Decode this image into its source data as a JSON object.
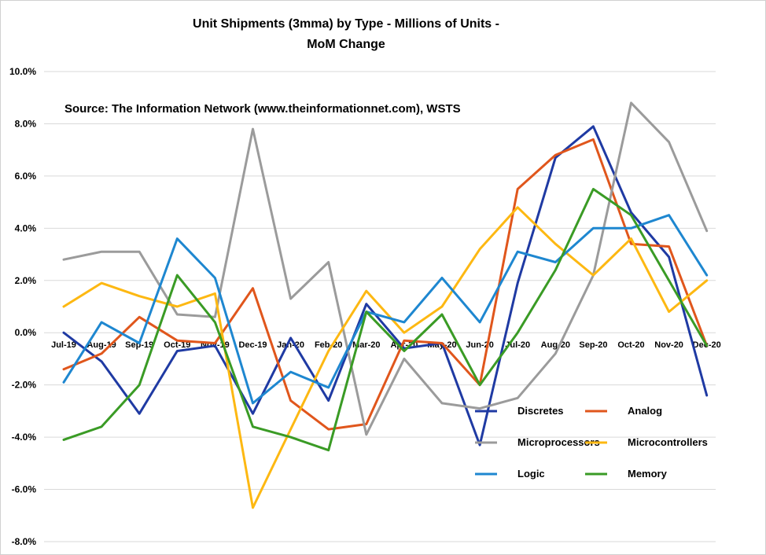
{
  "chart_data": {
    "type": "line",
    "title": "Unit Shipments (3mma) by Type - Millions of Units -",
    "subtitle": "MoM Change",
    "annotation": "Source: The Information Network (www.theinformationnet.com), WSTS",
    "categories": [
      "Jul-19",
      "Aug-19",
      "Sep-19",
      "Oct-19",
      "Nov-19",
      "Dec-19",
      "Jan-20",
      "Feb-20",
      "Mar-20",
      "Apr-20",
      "May-20",
      "Jun-20",
      "Jul-20",
      "Aug-20",
      "Sep-20",
      "Oct-20",
      "Nov-20",
      "Dec-20"
    ],
    "ylim": [
      -8,
      10
    ],
    "yticks": [
      -8,
      -6,
      -4,
      -2,
      0,
      2,
      4,
      6,
      8,
      10
    ],
    "ytick_labels": [
      "-8.0%",
      "-6.0%",
      "-4.0%",
      "-2.0%",
      "0.0%",
      "2.0%",
      "4.0%",
      "6.0%",
      "8.0%",
      "10.0%"
    ],
    "grid": "horizontal",
    "legend_position": "bottom-right",
    "series": [
      {
        "name": "Discretes",
        "color": "#1f3aa3",
        "values": [
          0.0,
          -1.1,
          -3.1,
          -0.7,
          -0.5,
          -3.1,
          -0.2,
          -2.6,
          1.1,
          -0.6,
          -0.4,
          -4.3,
          1.9,
          6.7,
          7.9,
          4.6,
          2.9,
          -2.4
        ]
      },
      {
        "name": "Analog",
        "color": "#e0561c",
        "values": [
          -1.4,
          -0.8,
          0.6,
          -0.3,
          -0.4,
          1.7,
          -2.6,
          -3.7,
          -3.5,
          -0.3,
          -0.4,
          -2.0,
          5.5,
          6.8,
          7.4,
          3.4,
          3.3,
          -0.5
        ]
      },
      {
        "name": "Microprocessors",
        "color": "#9b9b9b",
        "values": [
          2.8,
          3.1,
          3.1,
          0.7,
          0.6,
          7.8,
          1.3,
          2.7,
          -3.9,
          -1.0,
          -2.7,
          -2.9,
          -2.5,
          -0.8,
          2.2,
          8.8,
          7.3,
          3.9
        ]
      },
      {
        "name": "Microcontrollers",
        "color": "#fdb812",
        "values": [
          1.0,
          1.9,
          1.4,
          1.0,
          1.5,
          -6.7,
          -3.7,
          -0.7,
          1.6,
          0.0,
          1.0,
          3.2,
          4.8,
          3.4,
          2.2,
          3.6,
          0.8,
          2.0
        ]
      },
      {
        "name": "Logic",
        "color": "#1e87d0",
        "values": [
          -1.9,
          0.4,
          -0.4,
          3.6,
          2.1,
          -2.7,
          -1.5,
          -2.1,
          0.8,
          0.4,
          2.1,
          0.4,
          3.1,
          2.7,
          4.0,
          4.0,
          4.5,
          2.2
        ]
      },
      {
        "name": "Memory",
        "color": "#3a9b25",
        "values": [
          -4.1,
          -3.6,
          -2.0,
          2.2,
          0.4,
          -3.6,
          -4.0,
          -4.5,
          0.8,
          -0.7,
          0.7,
          -2.0,
          0.0,
          2.4,
          5.5,
          4.5,
          2.0,
          -0.5
        ]
      }
    ]
  }
}
